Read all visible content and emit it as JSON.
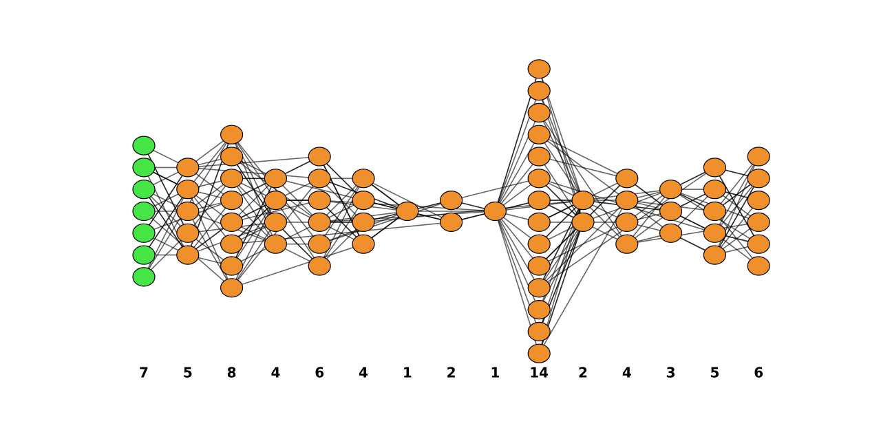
{
  "layers": [
    {
      "size": 7
    },
    {
      "size": 5
    },
    {
      "size": 8
    },
    {
      "size": 4
    },
    {
      "size": 6
    },
    {
      "size": 4
    },
    {
      "size": 1
    },
    {
      "size": 2
    },
    {
      "size": 1
    },
    {
      "size": 14
    },
    {
      "size": 2
    },
    {
      "size": 4
    },
    {
      "size": 3
    },
    {
      "size": 5
    },
    {
      "size": 6
    }
  ]
}
